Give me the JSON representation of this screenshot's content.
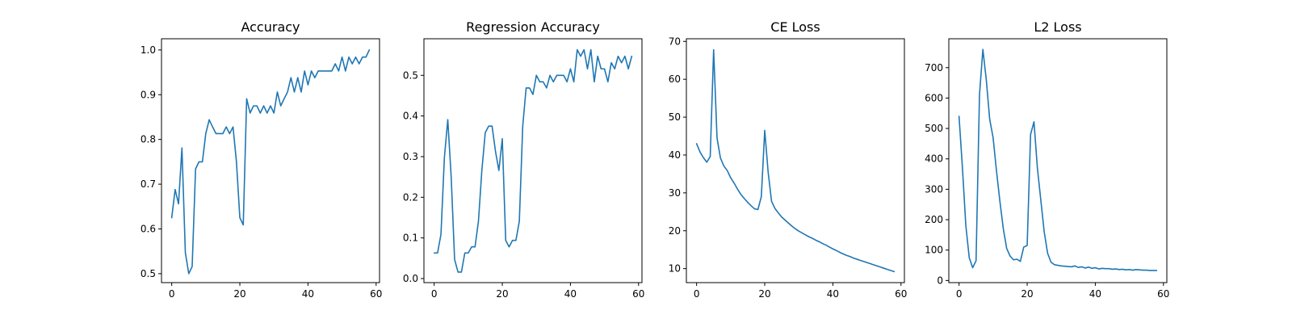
{
  "colors": {
    "line": "#1f77b4",
    "axes": "#000000",
    "background": "#ffffff"
  },
  "chart_data": [
    {
      "type": "line",
      "title": "Accuracy",
      "xlabel": "",
      "ylabel": "",
      "xlim": [
        -3,
        61
      ],
      "ylim": [
        0.48,
        1.025
      ],
      "xticks": [
        0,
        20,
        40,
        60
      ],
      "yticks": [
        0.5,
        0.6,
        0.7,
        0.8,
        0.9,
        1.0
      ],
      "ytick_labels": [
        "0.5",
        "0.6",
        "0.7",
        "0.8",
        "0.9",
        "1.0"
      ],
      "grid": false,
      "x": [
        0,
        1,
        2,
        3,
        4,
        5,
        6,
        7,
        8,
        9,
        10,
        11,
        12,
        13,
        14,
        15,
        16,
        17,
        18,
        19,
        20,
        21,
        22,
        23,
        24,
        25,
        26,
        27,
        28,
        29,
        30,
        31,
        32,
        33,
        34,
        35,
        36,
        37,
        38,
        39,
        40,
        41,
        42,
        43,
        44,
        45,
        46,
        47,
        48,
        49,
        50,
        51,
        52,
        53,
        54,
        55,
        56,
        57,
        58
      ],
      "series": [
        {
          "values": [
            0.625,
            0.688,
            0.656,
            0.781,
            0.547,
            0.5,
            0.516,
            0.734,
            0.75,
            0.75,
            0.813,
            0.844,
            0.828,
            0.813,
            0.813,
            0.813,
            0.828,
            0.813,
            0.828,
            0.75,
            0.625,
            0.609,
            0.891,
            0.859,
            0.875,
            0.875,
            0.859,
            0.875,
            0.859,
            0.875,
            0.859,
            0.906,
            0.875,
            0.891,
            0.906,
            0.938,
            0.906,
            0.938,
            0.906,
            0.953,
            0.922,
            0.953,
            0.938,
            0.953,
            0.953,
            0.953,
            0.953,
            0.953,
            0.969,
            0.953,
            0.984,
            0.953,
            0.984,
            0.969,
            0.984,
            0.969,
            0.984,
            0.984,
            1.0
          ]
        }
      ]
    },
    {
      "type": "line",
      "title": "Regression Accuracy",
      "xlabel": "",
      "ylabel": "",
      "xlim": [
        -3,
        61
      ],
      "ylim": [
        -0.01,
        0.59
      ],
      "xticks": [
        0,
        20,
        40,
        60
      ],
      "yticks": [
        0.0,
        0.1,
        0.2,
        0.3,
        0.4,
        0.5
      ],
      "ytick_labels": [
        "0.0",
        "0.1",
        "0.2",
        "0.3",
        "0.4",
        "0.5"
      ],
      "grid": false,
      "x": [
        0,
        1,
        2,
        3,
        4,
        5,
        6,
        7,
        8,
        9,
        10,
        11,
        12,
        13,
        14,
        15,
        16,
        17,
        18,
        19,
        20,
        21,
        22,
        23,
        24,
        25,
        26,
        27,
        28,
        29,
        30,
        31,
        32,
        33,
        34,
        35,
        36,
        37,
        38,
        39,
        40,
        41,
        42,
        43,
        44,
        45,
        46,
        47,
        48,
        49,
        50,
        51,
        52,
        53,
        54,
        55,
        56,
        57,
        58
      ],
      "series": [
        {
          "values": [
            0.063,
            0.063,
            0.109,
            0.297,
            0.391,
            0.25,
            0.047,
            0.016,
            0.016,
            0.063,
            0.063,
            0.078,
            0.078,
            0.141,
            0.266,
            0.359,
            0.375,
            0.375,
            0.313,
            0.266,
            0.344,
            0.094,
            0.078,
            0.094,
            0.094,
            0.141,
            0.375,
            0.469,
            0.469,
            0.453,
            0.5,
            0.484,
            0.484,
            0.469,
            0.5,
            0.484,
            0.5,
            0.5,
            0.5,
            0.484,
            0.516,
            0.484,
            0.563,
            0.547,
            0.563,
            0.516,
            0.563,
            0.484,
            0.547,
            0.516,
            0.516,
            0.484,
            0.531,
            0.516,
            0.547,
            0.531,
            0.547,
            0.516,
            0.547
          ]
        }
      ]
    },
    {
      "type": "line",
      "title": "CE Loss",
      "xlabel": "",
      "ylabel": "",
      "xlim": [
        -3,
        61
      ],
      "ylim": [
        6.3,
        70.7
      ],
      "xticks": [
        0,
        20,
        40,
        60
      ],
      "yticks": [
        10,
        20,
        30,
        40,
        50,
        60,
        70
      ],
      "ytick_labels": [
        "10",
        "20",
        "30",
        "40",
        "50",
        "60",
        "70"
      ],
      "grid": false,
      "x": [
        0,
        1,
        2,
        3,
        4,
        5,
        6,
        7,
        8,
        9,
        10,
        11,
        12,
        13,
        14,
        15,
        16,
        17,
        18,
        19,
        20,
        21,
        22,
        23,
        24,
        25,
        26,
        27,
        28,
        29,
        30,
        31,
        32,
        33,
        34,
        35,
        36,
        37,
        38,
        39,
        40,
        41,
        42,
        43,
        44,
        45,
        46,
        47,
        48,
        49,
        50,
        51,
        52,
        53,
        54,
        55,
        56,
        57,
        58
      ],
      "series": [
        {
          "values": [
            43.0,
            40.8,
            39.3,
            38.1,
            39.6,
            67.8,
            44.5,
            39.2,
            37.1,
            35.9,
            34.0,
            32.6,
            31.0,
            29.6,
            28.5,
            27.5,
            26.6,
            25.8,
            25.6,
            29.0,
            46.5,
            35.5,
            27.8,
            25.9,
            24.7,
            23.6,
            22.8,
            22.0,
            21.2,
            20.5,
            19.9,
            19.4,
            18.9,
            18.4,
            18.0,
            17.5,
            17.1,
            16.6,
            16.2,
            15.7,
            15.2,
            14.8,
            14.3,
            13.9,
            13.5,
            13.2,
            12.8,
            12.5,
            12.2,
            11.9,
            11.6,
            11.3,
            11.0,
            10.7,
            10.4,
            10.1,
            9.8,
            9.5,
            9.2
          ]
        }
      ]
    },
    {
      "type": "line",
      "title": "L2 Loss",
      "xlabel": "",
      "ylabel": "",
      "xlim": [
        -3,
        61
      ],
      "ylim": [
        -7,
        795
      ],
      "xticks": [
        0,
        20,
        40,
        60
      ],
      "yticks": [
        0,
        100,
        200,
        300,
        400,
        500,
        600,
        700
      ],
      "ytick_labels": [
        "0",
        "100",
        "200",
        "300",
        "400",
        "500",
        "600",
        "700"
      ],
      "grid": false,
      "x": [
        0,
        1,
        2,
        3,
        4,
        5,
        6,
        7,
        8,
        9,
        10,
        11,
        12,
        13,
        14,
        15,
        16,
        17,
        18,
        19,
        20,
        21,
        22,
        23,
        24,
        25,
        26,
        27,
        28,
        29,
        30,
        31,
        32,
        33,
        34,
        35,
        36,
        37,
        38,
        39,
        40,
        41,
        42,
        43,
        44,
        45,
        46,
        47,
        48,
        49,
        50,
        51,
        52,
        53,
        54,
        55,
        56,
        57,
        58
      ],
      "series": [
        {
          "values": [
            540,
            370,
            180,
            75,
            42,
            65,
            610,
            760,
            660,
            530,
            470,
            360,
            260,
            170,
            105,
            80,
            68,
            70,
            63,
            110,
            115,
            480,
            522,
            370,
            265,
            160,
            90,
            60,
            52,
            50,
            48,
            47,
            46,
            45,
            48,
            43,
            45,
            41,
            44,
            40,
            42,
            38,
            40,
            39,
            39,
            37,
            38,
            36,
            37,
            35,
            36,
            34,
            36,
            35,
            34,
            34,
            33,
            33,
            33
          ]
        }
      ]
    }
  ]
}
